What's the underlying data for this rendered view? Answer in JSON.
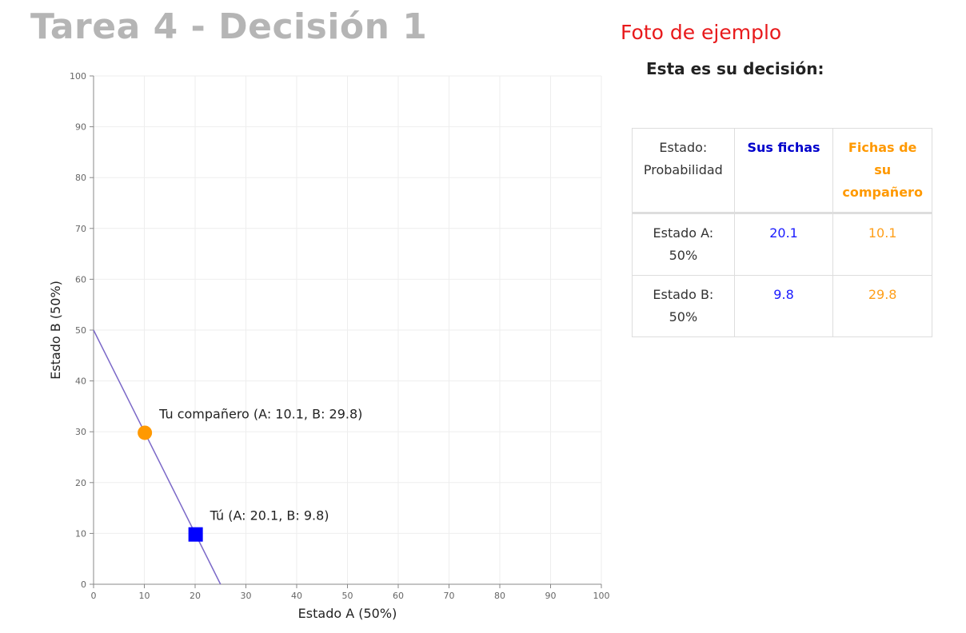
{
  "page": {
    "title": "Tarea 4 - Decisión 1",
    "sample_label": "Foto de ejemplo",
    "decision_heading": "Esta es su decisión:"
  },
  "table": {
    "headers": {
      "state": "Estado: Probabilidad",
      "own": "Sus fichas",
      "partner": "Fichas de su compañero"
    },
    "rows": [
      {
        "state": "Estado A: 50%",
        "own": "20.1",
        "partner": "10.1"
      },
      {
        "state": "Estado B: 50%",
        "own": "9.8",
        "partner": "29.8"
      }
    ],
    "colors": {
      "own": "#0000cc",
      "partner": "#ff9900"
    }
  },
  "chart_data": {
    "type": "scatter",
    "xlabel": "Estado A (50%)",
    "ylabel": "Estado B (50%)",
    "xlim": [
      0,
      100
    ],
    "ylim": [
      0,
      100
    ],
    "x_ticks": [
      0,
      10,
      20,
      30,
      40,
      50,
      60,
      70,
      80,
      90,
      100
    ],
    "y_ticks": [
      0,
      10,
      20,
      30,
      40,
      50,
      60,
      70,
      80,
      90,
      100
    ],
    "grid": true,
    "budget_line": {
      "points": [
        [
          0,
          50
        ],
        [
          25,
          0
        ]
      ],
      "color": "#7b68c8"
    },
    "series": [
      {
        "label": "Tu compañero (A: 10.1, B: 29.8)",
        "x": 10.1,
        "y": 29.8,
        "marker": "circle",
        "color": "#ff9900"
      },
      {
        "label": "Tú (A: 20.1, B: 9.8)",
        "x": 20.1,
        "y": 9.8,
        "marker": "square",
        "color": "#0000ff"
      }
    ]
  }
}
